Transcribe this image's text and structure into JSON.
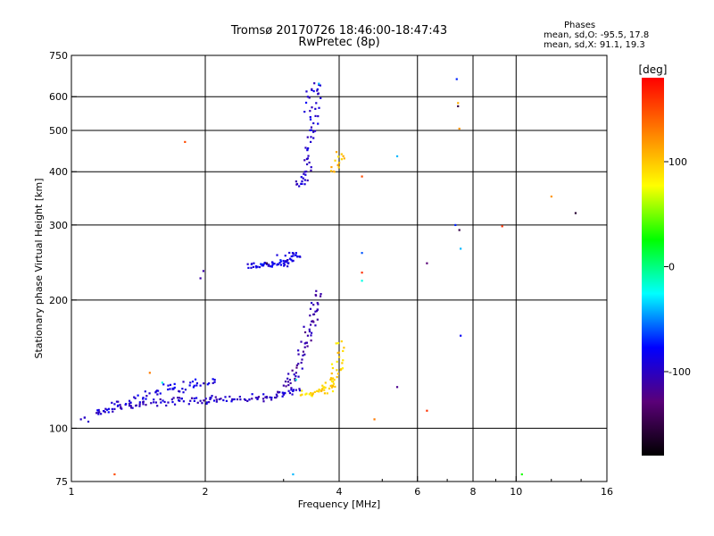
{
  "title_line1": "Tromsø 20170726 18:46:00-18:47:43",
  "title_line2": "RwPretec (8p)",
  "stats": {
    "header": "Phases",
    "line_o": "mean, sd,O: -95.5, 17.8",
    "line_x": "mean, sd,X:  91.1, 19.3"
  },
  "chart_data": {
    "type": "scatter",
    "xlabel": "Frequency [MHz]",
    "ylabel": "Stationary phase Virtual Height [km]",
    "x_scale": "log",
    "y_scale": "log",
    "xlim": [
      1,
      16
    ],
    "ylim": [
      75,
      750
    ],
    "xticks": [
      1,
      2,
      4,
      6,
      8,
      10,
      16
    ],
    "xtick_labels": [
      "1",
      "2",
      "4",
      "6",
      "8",
      "10",
      "16"
    ],
    "xgrid": [
      2,
      4,
      6,
      8,
      10
    ],
    "yticks": [
      75,
      100,
      200,
      300,
      400,
      500,
      600,
      750
    ],
    "ytick_labels": [
      "75",
      "100",
      "200",
      "300",
      "400",
      "500",
      "600",
      "750"
    ],
    "ygrid": [
      100,
      200,
      300,
      400,
      500,
      600
    ],
    "grid": true,
    "colorbar": {
      "label": "[deg]",
      "range": [
        -180,
        180
      ],
      "ticks": [
        100,
        0,
        -100
      ],
      "tick_labels": [
        "100",
        "0",
        "-100"
      ],
      "colors": [
        "#000000",
        "#5a0078",
        "#0000ff",
        "#00ffff",
        "#00ff00",
        "#ffff00",
        "#ff7f00",
        "#ff0000"
      ]
    },
    "traces": [
      {
        "name": "",
        "x": [
          1.05,
          1.15,
          1.25,
          1.35,
          1.45,
          1.55,
          1.65,
          1.75,
          1.85,
          1.95,
          2.05,
          2.15,
          2.3,
          2.45,
          2.6,
          2.75,
          2.9,
          3.0,
          3.1,
          3.2
        ],
        "y": [
          105,
          109,
          111,
          113,
          114,
          115,
          115,
          116,
          116,
          116,
          117,
          117,
          117,
          117,
          118,
          118,
          119,
          120,
          121,
          123
        ],
        "phase": -100
      },
      {
        "name": "",
        "x": [
          3.0,
          3.1,
          3.2,
          3.3,
          3.35,
          3.4,
          3.45,
          3.5,
          3.5,
          3.55
        ],
        "y": [
          126,
          130,
          135,
          145,
          155,
          165,
          175,
          185,
          195,
          210
        ],
        "phase": -110
      },
      {
        "name": "",
        "x": [
          1.15,
          1.25,
          1.35,
          1.45,
          1.55,
          1.65,
          1.75,
          1.85,
          1.95,
          2.1
        ],
        "y": [
          108,
          114,
          116,
          118,
          122,
          126,
          122,
          128,
          126,
          130
        ],
        "phase": -90
      },
      {
        "name": "",
        "x": [
          2.5,
          2.6,
          2.7,
          2.8,
          2.9,
          3.0,
          3.05,
          3.1,
          3.15,
          3.2
        ],
        "y": [
          238,
          240,
          241,
          240,
          242,
          244,
          246,
          250,
          254,
          258
        ],
        "phase": -85
      },
      {
        "name": "",
        "x": [
          3.25,
          3.3,
          3.35,
          3.4,
          3.45,
          3.5,
          3.55,
          3.6,
          3.4,
          3.5
        ],
        "y": [
          370,
          380,
          400,
          430,
          470,
          520,
          580,
          640,
          600,
          480
        ],
        "phase": -95
      },
      {
        "name": "",
        "x": [
          3.3,
          3.45,
          3.6,
          3.7,
          3.8,
          3.85,
          3.9,
          3.95,
          4.0,
          4.05
        ],
        "y": [
          120,
          121,
          122,
          123,
          124,
          126,
          130,
          137,
          147,
          160
        ],
        "phase": 95
      },
      {
        "name": "",
        "x": [
          3.9,
          4.0,
          4.05
        ],
        "y": [
          400,
          420,
          440
        ],
        "phase": 100
      }
    ],
    "scattered": [
      {
        "x": 1.8,
        "y": 470,
        "phase": 150
      },
      {
        "x": 1.25,
        "y": 78,
        "phase": 150
      },
      {
        "x": 1.95,
        "y": 225,
        "phase": -110
      },
      {
        "x": 1.98,
        "y": 234,
        "phase": -110
      },
      {
        "x": 4.5,
        "y": 258,
        "phase": -60
      },
      {
        "x": 4.5,
        "y": 232,
        "phase": 160
      },
      {
        "x": 4.5,
        "y": 222,
        "phase": -20
      },
      {
        "x": 4.5,
        "y": 390,
        "phase": 150
      },
      {
        "x": 5.4,
        "y": 435,
        "phase": -40
      },
      {
        "x": 5.4,
        "y": 125,
        "phase": -120
      },
      {
        "x": 4.8,
        "y": 105,
        "phase": 130
      },
      {
        "x": 6.3,
        "y": 244,
        "phase": -130
      },
      {
        "x": 6.3,
        "y": 110,
        "phase": 160
      },
      {
        "x": 7.3,
        "y": 300,
        "phase": -70
      },
      {
        "x": 7.35,
        "y": 660,
        "phase": -70
      },
      {
        "x": 7.4,
        "y": 580,
        "phase": 110
      },
      {
        "x": 7.4,
        "y": 570,
        "phase": -150
      },
      {
        "x": 7.45,
        "y": 505,
        "phase": 120
      },
      {
        "x": 7.5,
        "y": 264,
        "phase": -40
      },
      {
        "x": 7.5,
        "y": 165,
        "phase": -80
      },
      {
        "x": 7.45,
        "y": 292,
        "phase": -150
      },
      {
        "x": 9.3,
        "y": 298,
        "phase": 160
      },
      {
        "x": 10.3,
        "y": 78,
        "phase": 30
      },
      {
        "x": 12.0,
        "y": 350,
        "phase": 120
      },
      {
        "x": 13.6,
        "y": 320,
        "phase": -160
      },
      {
        "x": 3.15,
        "y": 78,
        "phase": -40
      },
      {
        "x": 3.6,
        "y": 644,
        "phase": -40
      },
      {
        "x": 1.5,
        "y": 135,
        "phase": 130
      },
      {
        "x": 1.6,
        "y": 128,
        "phase": -20
      },
      {
        "x": 2.75,
        "y": 244,
        "phase": -150
      },
      {
        "x": 2.9,
        "y": 255,
        "phase": -90
      },
      {
        "x": 3.2,
        "y": 130,
        "phase": -20
      }
    ]
  }
}
